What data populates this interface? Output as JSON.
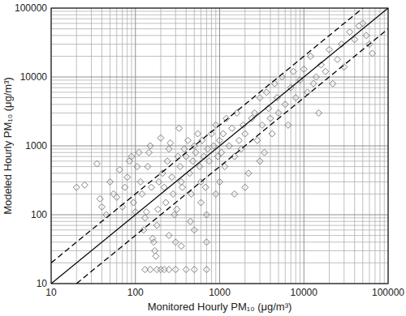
{
  "chart_data": {
    "type": "scatter",
    "xlabel": "Monitored Hourly PM₁₀ (μg/m³)",
    "ylabel": "Modeled Hourly PM₁₀ (μg/m³)",
    "log": true,
    "grid": true,
    "xlim": [
      10,
      100000
    ],
    "ylim": [
      10,
      100000
    ],
    "xticks": [
      10,
      100,
      1000,
      10000,
      100000
    ],
    "yticks": [
      10,
      100,
      1000,
      10000,
      100000
    ],
    "series": [
      {
        "type": "scatter",
        "marker": "diamond",
        "color": "#808080",
        "x": [
          20,
          25,
          35,
          38,
          40,
          45,
          50,
          55,
          60,
          65,
          70,
          75,
          80,
          85,
          90,
          95,
          100,
          105,
          110,
          115,
          120,
          125,
          130,
          135,
          140,
          145,
          150,
          155,
          160,
          165,
          170,
          175,
          180,
          185,
          190,
          200,
          210,
          220,
          230,
          240,
          250,
          260,
          270,
          280,
          290,
          300,
          310,
          320,
          330,
          340,
          350,
          360,
          380,
          400,
          420,
          440,
          460,
          480,
          500,
          520,
          550,
          580,
          600,
          620,
          650,
          680,
          700,
          720,
          750,
          800,
          850,
          900,
          950,
          1000,
          1050,
          1100,
          1150,
          1200,
          1300,
          1400,
          1500,
          1600,
          1700,
          1800,
          1900,
          2000,
          2200,
          2400,
          2600,
          2800,
          3000,
          3200,
          3400,
          3600,
          3800,
          4000,
          4200,
          4500,
          4800,
          5000,
          5500,
          6000,
          6500,
          7000,
          7500,
          8000,
          9000,
          10000,
          11000,
          12000,
          13000,
          14000,
          15000,
          16000,
          18000,
          20000,
          22000,
          25000,
          28000,
          30000,
          35000,
          40000,
          45000,
          50000,
          55000,
          60000,
          65000,
          130,
          150,
          180,
          200,
          220,
          250,
          300,
          400,
          500,
          700,
          250,
          350,
          450,
          500,
          600,
          1500,
          3000,
          1000,
          700,
          900,
          2000
        ],
        "values": [
          250,
          270,
          550,
          170,
          130,
          100,
          300,
          200,
          180,
          450,
          130,
          250,
          350,
          600,
          700,
          150,
          110,
          500,
          800,
          300,
          200,
          60,
          90,
          110,
          500,
          800,
          1000,
          250,
          45,
          40,
          30,
          25,
          70,
          120,
          300,
          1300,
          400,
          250,
          150,
          600,
          900,
          1100,
          350,
          200,
          100,
          40,
          120,
          700,
          1800,
          500,
          300,
          250,
          900,
          700,
          1200,
          400,
          200,
          600,
          1000,
          800,
          1500,
          500,
          300,
          1200,
          700,
          250,
          100,
          900,
          600,
          1500,
          1000,
          2000,
          700,
          1200,
          800,
          1500,
          500,
          2500,
          1000,
          1800,
          700,
          3000,
          1200,
          900,
          2000,
          1500,
          400,
          2500,
          3000,
          1200,
          5000,
          2000,
          800,
          6000,
          3500,
          2500,
          1500,
          8000,
          5000,
          3000,
          10000,
          4000,
          2000,
          7000,
          12000,
          5000,
          9000,
          13000,
          6000,
          20000,
          8000,
          10000,
          3000,
          15000,
          12000,
          25000,
          8000,
          18000,
          30000,
          14000,
          45000,
          35000,
          55000,
          60000,
          40000,
          30000,
          22000,
          16,
          16,
          16,
          16,
          16,
          16,
          16,
          16,
          16,
          16,
          50,
          35,
          80,
          60,
          150,
          200,
          600,
          300,
          40,
          200,
          250
        ]
      },
      {
        "type": "line",
        "line_style": "solid",
        "color": "#000000",
        "x": [
          10,
          100000
        ],
        "values": [
          10,
          100000
        ]
      },
      {
        "type": "line",
        "line_style": "dashed",
        "color": "#000000",
        "x": [
          10,
          50000
        ],
        "values": [
          20,
          100000
        ]
      },
      {
        "type": "line",
        "line_style": "dashed",
        "color": "#000000",
        "x": [
          20,
          100000
        ],
        "values": [
          10,
          50000
        ]
      }
    ]
  }
}
